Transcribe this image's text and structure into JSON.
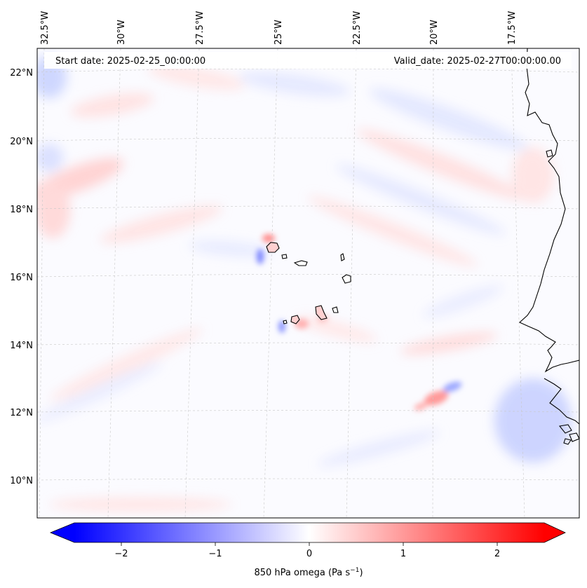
{
  "annotations": {
    "start_date": "Start date: 2025-02-25_00:00:00",
    "valid_date": "Valid_date: 2025-02-27T00:00:00.00"
  },
  "longitude_labels": [
    "32.5°W",
    "30°W",
    "27.5°W",
    "25°W",
    "22.5°W",
    "20°W",
    "17.5°W"
  ],
  "latitude_labels": [
    "22°N",
    "20°N",
    "18°N",
    "16°N",
    "14°N",
    "12°N",
    "10°N"
  ],
  "colorbar": {
    "label": "850 hPa omega (Pa s",
    "label_sup": "−1",
    "label_end": ")",
    "ticks": [
      "−2",
      "−1",
      "0",
      "1",
      "2"
    ],
    "tick_values": [
      -2,
      -1,
      0,
      1,
      2
    ],
    "min": -2.5,
    "max": 2.5,
    "colormap": "bwr",
    "low_color": "#0000ff",
    "mid_color": "#ffffff",
    "high_color": "#ff0000",
    "extend": "both"
  },
  "map": {
    "field": "850 hPa omega",
    "gridlines": true,
    "extent": {
      "lon_min": -33,
      "lon_max": -15.5,
      "lat_min": 9,
      "lat_max": 22.7
    }
  }
}
